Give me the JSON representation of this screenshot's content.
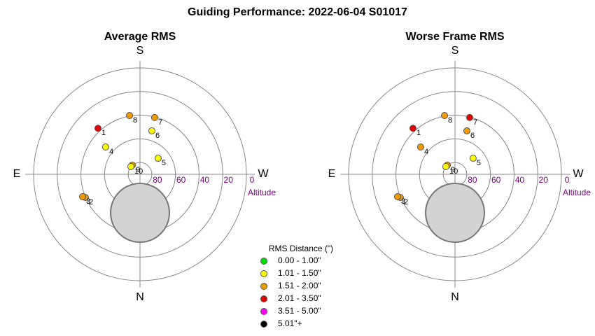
{
  "title": "Guiding Performance: 2022-06-04 S01017",
  "chart_data": [
    {
      "type": "polar",
      "title": "Average RMS",
      "directions": [
        "N",
        "E",
        "S",
        "W"
      ],
      "rlim": [
        90,
        0
      ],
      "rticks": [
        80,
        60,
        40,
        20,
        0
      ],
      "r_label": "Altitude",
      "points": {
        "labels": [
          "1",
          "2",
          "3",
          "4",
          "5",
          "6",
          "7",
          "8",
          "9",
          "10"
        ],
        "azimuth": [
          137.6,
          67,
          68.7,
          128.5,
          228.5,
          195.3,
          194.5,
          169.9,
          139.8,
          130.2
        ],
        "altitude": [
          37.3,
          39.8,
          37.9,
          52.9,
          69.5,
          51.9,
          40.4,
          39.5,
          79.9,
          79.9
        ],
        "colors": [
          "#e00000",
          "#f09a00",
          "#f09a00",
          "#ffff00",
          "#ffff00",
          "#ffff00",
          "#f09a00",
          "#f09a00",
          "#f09a00",
          "#ffff00"
        ]
      }
    },
    {
      "type": "polar",
      "title": "Worse Frame RMS",
      "directions": [
        "N",
        "E",
        "S",
        "W"
      ],
      "rlim": [
        90,
        0
      ],
      "rticks": [
        80,
        60,
        40,
        20,
        0
      ],
      "r_label": "Altitude",
      "points": {
        "labels": [
          "1",
          "2",
          "3",
          "4",
          "5",
          "6",
          "7",
          "8",
          "9",
          "10"
        ],
        "azimuth": [
          137.6,
          67,
          68.7,
          128.5,
          228.5,
          195.3,
          194.5,
          169.9,
          139.8,
          130.2
        ],
        "altitude": [
          37.3,
          39.8,
          37.9,
          52.9,
          69.5,
          51.9,
          40.4,
          39.5,
          79.9,
          79.9
        ],
        "colors": [
          "#e00000",
          "#f09a00",
          "#f09a00",
          "#f09a00",
          "#ffff00",
          "#f09a00",
          "#e00000",
          "#f09a00",
          "#f09a00",
          "#ffff00"
        ]
      }
    }
  ],
  "legend": {
    "title": "RMS Distance (\")",
    "items": [
      {
        "label": "0.00 - 1.00\"",
        "color": "#00e000"
      },
      {
        "label": "1.01 - 1.50\"",
        "color": "#ffff00"
      },
      {
        "label": "1.51 - 2.00\"",
        "color": "#f09a00"
      },
      {
        "label": "2.01 - 3.50\"",
        "color": "#e00000"
      },
      {
        "label": "3.51 - 5.00\"",
        "color": "#ff00ff"
      },
      {
        "label": "5.01\"+",
        "color": "#000000"
      }
    ]
  }
}
